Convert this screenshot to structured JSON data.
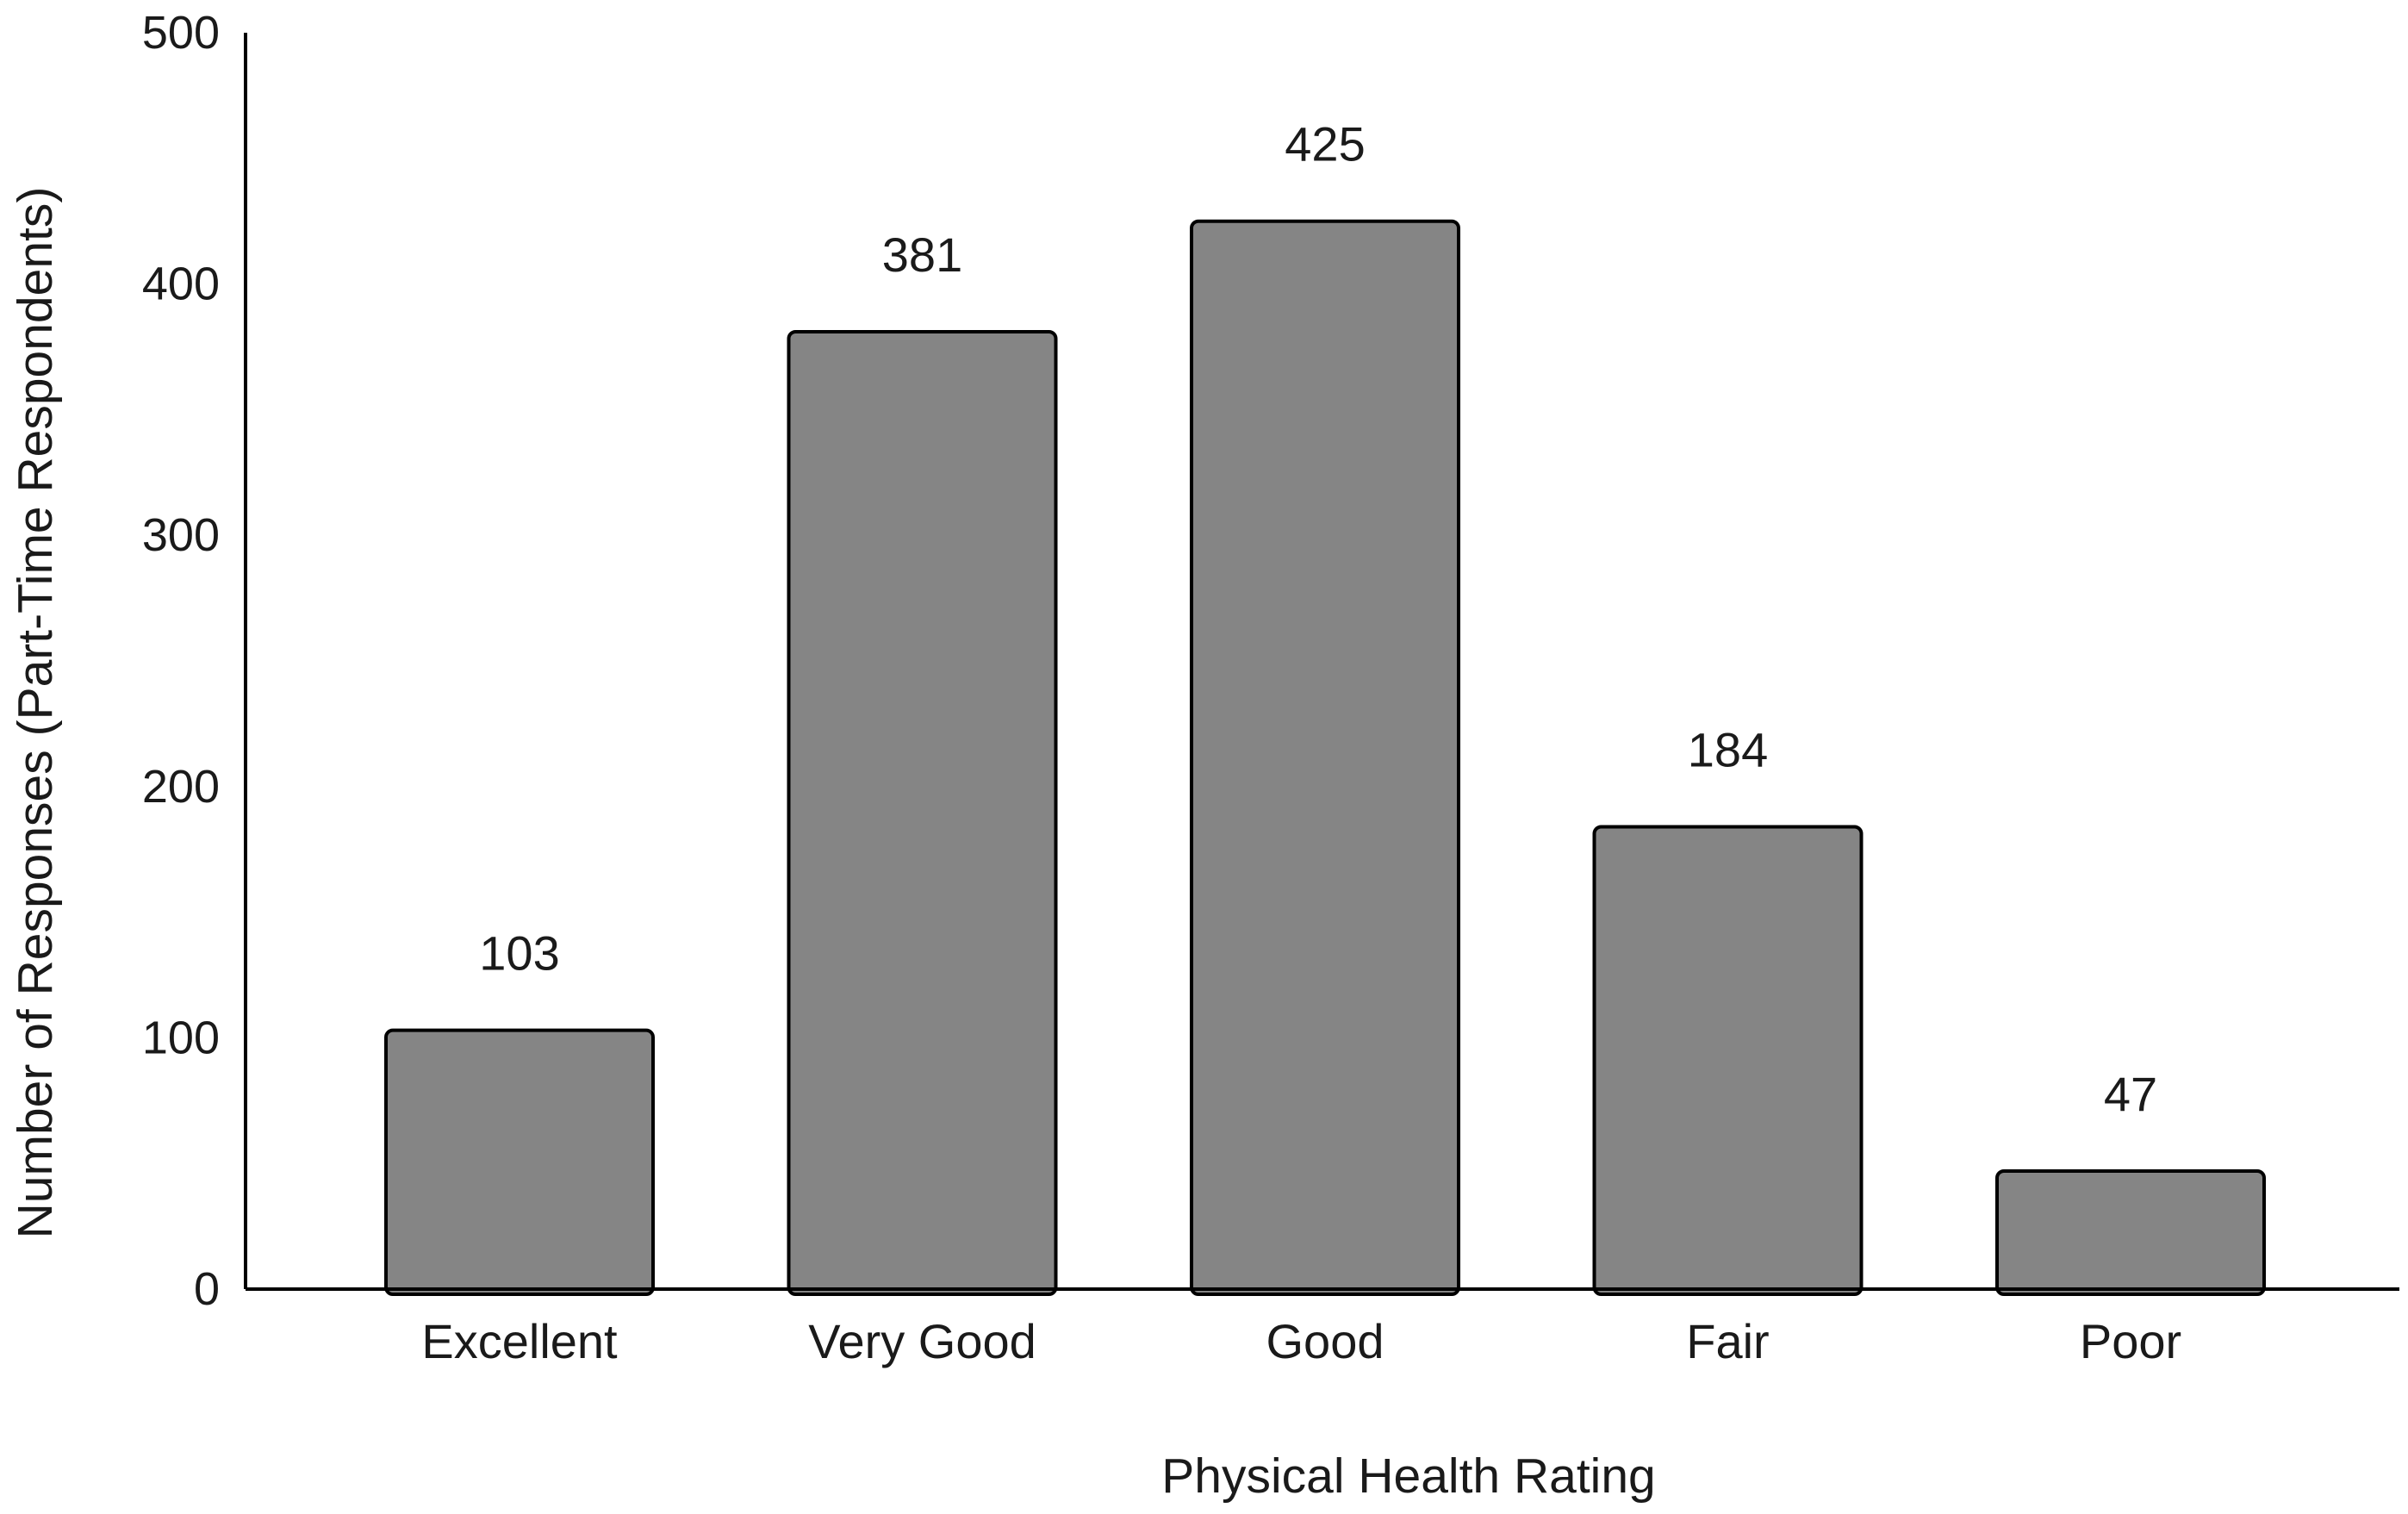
{
  "chart_data": {
    "type": "bar",
    "title": "",
    "xlabel": "Physical Health Rating",
    "ylabel": "Number of Responses (Part-Time Respondents)",
    "categories": [
      "Excellent",
      "Very Good",
      "Good",
      "Fair",
      "Poor"
    ],
    "values": [
      103,
      381,
      425,
      184,
      47
    ],
    "data_labels": [
      "103",
      "381",
      "425",
      "184",
      "47"
    ],
    "ylim": [
      0,
      500
    ],
    "yticks": [
      0,
      100,
      200,
      300,
      400,
      500
    ],
    "ytick_labels": [
      "0",
      "100",
      "200",
      "300",
      "400",
      "500"
    ],
    "grid": false,
    "legend": "none",
    "bar_color": "#858585",
    "bar_edge_color": "#000000"
  }
}
